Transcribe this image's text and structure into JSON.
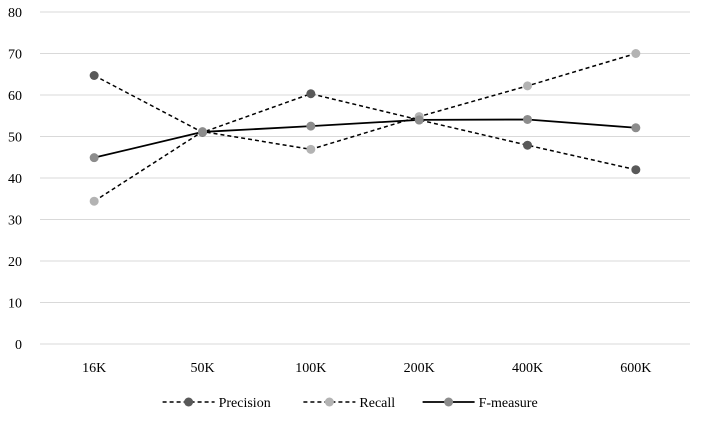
{
  "chart_data": {
    "type": "line",
    "categories": [
      "16K",
      "50K",
      "100K",
      "200K",
      "400K",
      "600K"
    ],
    "ylim": [
      0,
      80
    ],
    "yticks": [
      0,
      10,
      20,
      30,
      40,
      50,
      60,
      70,
      80
    ],
    "grid": true,
    "legend_position": "bottom",
    "series": [
      {
        "name": "Precision",
        "values": [
          64.7,
          51.0,
          60.3,
          54.0,
          47.9,
          42.0
        ],
        "color": "#595959",
        "dashed": true
      },
      {
        "name": "Recall",
        "values": [
          34.4,
          51.2,
          46.9,
          54.8,
          62.2,
          70.0
        ],
        "color": "#b3b3b3",
        "dashed": true
      },
      {
        "name": "F-measure",
        "values": [
          44.9,
          51.1,
          52.5,
          54.0,
          54.1,
          52.1
        ],
        "color": "#8c8c8c",
        "line_color": "#000000",
        "dashed": false
      }
    ]
  }
}
